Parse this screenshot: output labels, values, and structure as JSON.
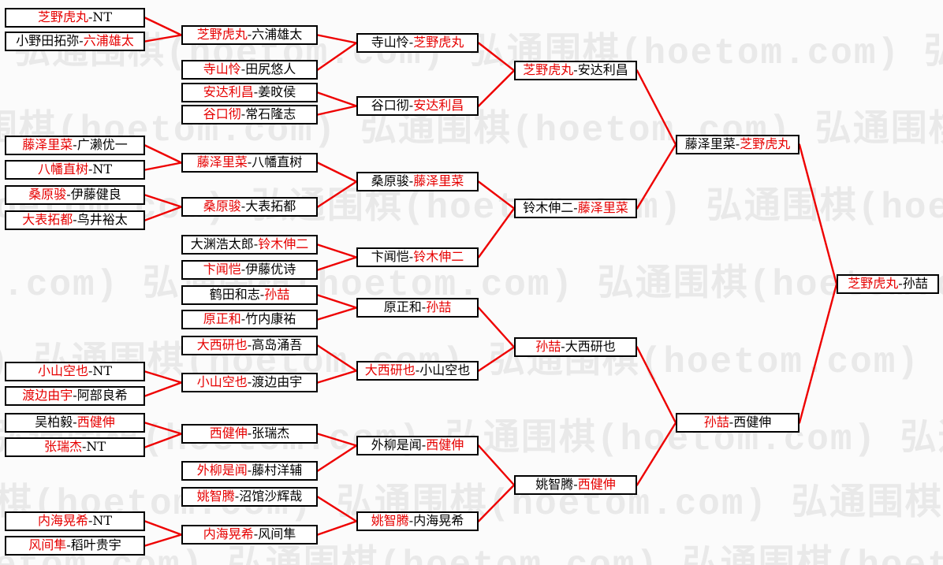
{
  "page": {
    "watermark_text": "弘通围棋(hoetom.com)",
    "separator": "-"
  },
  "colors": {
    "winner_text": "#e60000",
    "loser_text": "#000000",
    "connector_line": "#ee0000",
    "box_border": "#000000",
    "box_background": "#ffffff",
    "watermark_text_color": "#e9e9e9",
    "page_background": "#fbfbfb"
  },
  "bracket": {
    "type": "single-elimination-tournament",
    "rounds": 6,
    "matches": [
      {
        "round": 1,
        "p1": "芝野虎丸",
        "p2": "NT",
        "winner": 1
      },
      {
        "round": 1,
        "p1": "小野田拓弥",
        "p2": "六浦雄太",
        "winner": 2
      },
      {
        "round": 1,
        "p1": "藤泽里菜",
        "p2": "广濑优一",
        "winner": 1
      },
      {
        "round": 1,
        "p1": "八幡直树",
        "p2": "NT",
        "winner": 1
      },
      {
        "round": 1,
        "p1": "桑原骏",
        "p2": "伊藤健良",
        "winner": 1
      },
      {
        "round": 1,
        "p1": "大表拓都",
        "p2": "鸟井裕太",
        "winner": 1
      },
      {
        "round": 1,
        "p1": "小山空也",
        "p2": "NT",
        "winner": 1
      },
      {
        "round": 1,
        "p1": "渡边由宇",
        "p2": "阿部良希",
        "winner": 1
      },
      {
        "round": 1,
        "p1": "吴柏毅",
        "p2": "西健伸",
        "winner": 2
      },
      {
        "round": 1,
        "p1": "张瑞杰",
        "p2": "NT",
        "winner": 1
      },
      {
        "round": 1,
        "p1": "内海晃希",
        "p2": "NT",
        "winner": 1
      },
      {
        "round": 1,
        "p1": "风间隼",
        "p2": "稻叶贵宇",
        "winner": 1
      },
      {
        "round": 2,
        "p1": "芝野虎丸",
        "p2": "六浦雄太",
        "winner": 1
      },
      {
        "round": 2,
        "p1": "寺山怜",
        "p2": "田尻悠人",
        "winner": 1
      },
      {
        "round": 2,
        "p1": "安达利昌",
        "p2": "姜旼侯",
        "winner": 1
      },
      {
        "round": 2,
        "p1": "谷口彻",
        "p2": "常石隆志",
        "winner": 1
      },
      {
        "round": 2,
        "p1": "藤泽里菜",
        "p2": "八幡直树",
        "winner": 1
      },
      {
        "round": 2,
        "p1": "桑原骏",
        "p2": "大表拓都",
        "winner": 1
      },
      {
        "round": 2,
        "p1": "大渊浩太郎",
        "p2": "铃木伸二",
        "winner": 2
      },
      {
        "round": 2,
        "p1": "卞闻恺",
        "p2": "伊藤优诗",
        "winner": 1
      },
      {
        "round": 2,
        "p1": "鹤田和志",
        "p2": "孙喆",
        "winner": 2
      },
      {
        "round": 2,
        "p1": "原正和",
        "p2": "竹内康祐",
        "winner": 1
      },
      {
        "round": 2,
        "p1": "大西研也",
        "p2": "高岛涌吾",
        "winner": 1
      },
      {
        "round": 2,
        "p1": "小山空也",
        "p2": "渡边由宇",
        "winner": 1
      },
      {
        "round": 2,
        "p1": "西健伸",
        "p2": "张瑞杰",
        "winner": 1
      },
      {
        "round": 2,
        "p1": "外柳是闻",
        "p2": "藤村洋辅",
        "winner": 1
      },
      {
        "round": 2,
        "p1": "姚智腾",
        "p2": "沼馆沙辉哉",
        "winner": 1
      },
      {
        "round": 2,
        "p1": "内海晃希",
        "p2": "风间隼",
        "winner": 1
      },
      {
        "round": 3,
        "p1": "寺山怜",
        "p2": "芝野虎丸",
        "winner": 2
      },
      {
        "round": 3,
        "p1": "谷口彻",
        "p2": "安达利昌",
        "winner": 2
      },
      {
        "round": 3,
        "p1": "桑原骏",
        "p2": "藤泽里菜",
        "winner": 2
      },
      {
        "round": 3,
        "p1": "卞闻恺",
        "p2": "铃木伸二",
        "winner": 2
      },
      {
        "round": 3,
        "p1": "原正和",
        "p2": "孙喆",
        "winner": 2
      },
      {
        "round": 3,
        "p1": "大西研也",
        "p2": "小山空也",
        "winner": 1
      },
      {
        "round": 3,
        "p1": "外柳是闻",
        "p2": "西健伸",
        "winner": 2
      },
      {
        "round": 3,
        "p1": "姚智腾",
        "p2": "内海晃希",
        "winner": 1
      },
      {
        "round": 4,
        "p1": "芝野虎丸",
        "p2": "安达利昌",
        "winner": 1
      },
      {
        "round": 4,
        "p1": "铃木伸二",
        "p2": "藤泽里菜",
        "winner": 2
      },
      {
        "round": 4,
        "p1": "孙喆",
        "p2": "大西研也",
        "winner": 1
      },
      {
        "round": 4,
        "p1": "姚智腾",
        "p2": "西健伸",
        "winner": 2
      },
      {
        "round": 5,
        "p1": "藤泽里菜",
        "p2": "芝野虎丸",
        "winner": 2
      },
      {
        "round": 5,
        "p1": "孙喆",
        "p2": "西健伸",
        "winner": 1
      },
      {
        "round": 6,
        "p1": "芝野虎丸",
        "p2": "孙喆",
        "winner": 1
      }
    ]
  }
}
